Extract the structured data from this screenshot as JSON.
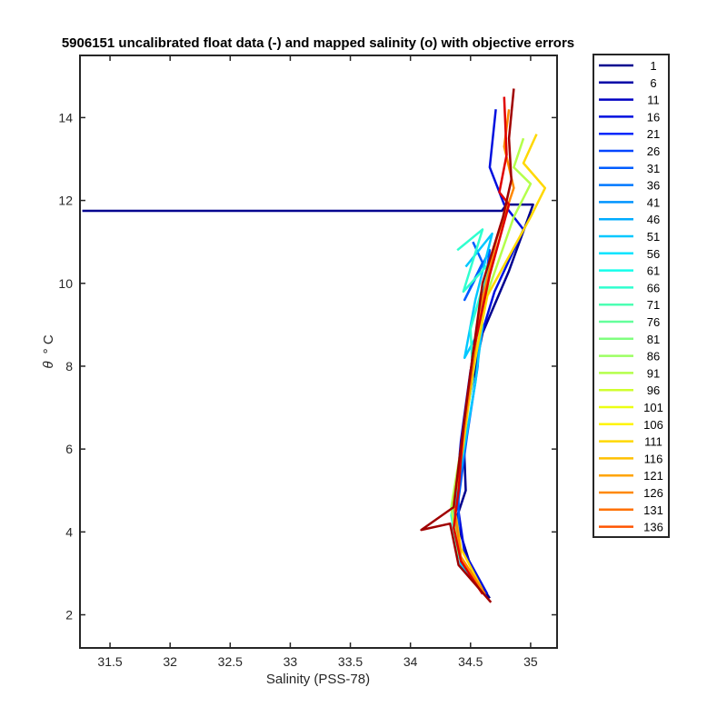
{
  "chart_data": {
    "type": "line",
    "title": "5906151 uncalibrated float data (-) and mapped salinity (o) with objective errors",
    "xlabel": "Salinity (PSS-78)",
    "ylabel_symbol": "θ",
    "ylabel_unit": "° C",
    "xlim": [
      31.25,
      35.22
    ],
    "ylim": [
      1.2,
      15.5
    ],
    "xticks": [
      "31.5",
      "32",
      "32.5",
      "33",
      "33.5",
      "34",
      "34.5",
      "35"
    ],
    "yticks": [
      "2",
      "4",
      "6",
      "8",
      "10",
      "12",
      "14"
    ],
    "grid": false,
    "legend_position": "outside-right",
    "legend": [
      {
        "label": "1",
        "color": "#00008F"
      },
      {
        "label": "6",
        "color": "#0000A7"
      },
      {
        "label": "11",
        "color": "#0000C3"
      },
      {
        "label": "16",
        "color": "#0010DF"
      },
      {
        "label": "21",
        "color": "#0028FB"
      },
      {
        "label": "26",
        "color": "#0044FF"
      },
      {
        "label": "31",
        "color": "#005CFF"
      },
      {
        "label": "36",
        "color": "#0078FF"
      },
      {
        "label": "41",
        "color": "#0094FF"
      },
      {
        "label": "46",
        "color": "#00ACFF"
      },
      {
        "label": "51",
        "color": "#00C8FF"
      },
      {
        "label": "56",
        "color": "#00E4FF"
      },
      {
        "label": "61",
        "color": "#14FFEB"
      },
      {
        "label": "66",
        "color": "#30FFCF"
      },
      {
        "label": "71",
        "color": "#4CFFB3"
      },
      {
        "label": "76",
        "color": "#64FF9B"
      },
      {
        "label": "81",
        "color": "#80FF7F"
      },
      {
        "label": "86",
        "color": "#9CFF63"
      },
      {
        "label": "91",
        "color": "#B4FF4B"
      },
      {
        "label": "96",
        "color": "#D0FF2F"
      },
      {
        "label": "101",
        "color": "#ECFF13"
      },
      {
        "label": "106",
        "color": "#FFF400"
      },
      {
        "label": "111",
        "color": "#FFD800"
      },
      {
        "label": "116",
        "color": "#FFC000"
      },
      {
        "label": "121",
        "color": "#FFA400"
      },
      {
        "label": "126",
        "color": "#FF8800"
      },
      {
        "label": "131",
        "color": "#FF7000"
      },
      {
        "label": "136",
        "color": "#FF5400"
      }
    ],
    "series": [
      {
        "color": "#00008F",
        "x": [
          31.27,
          34.76,
          34.8,
          35.02,
          34.82,
          34.6,
          34.44,
          34.46,
          34.38,
          34.52,
          34.66
        ],
        "y": [
          11.75,
          11.75,
          11.9,
          11.9,
          10.3,
          8.8,
          6.5,
          5.0,
          4.3,
          3.0,
          2.4
        ]
      },
      {
        "color": "#0010DF",
        "x": [
          34.71,
          34.66,
          34.78,
          34.94,
          34.7,
          34.5,
          34.42,
          34.38,
          34.45,
          34.64
        ],
        "y": [
          14.2,
          12.8,
          11.9,
          11.3,
          9.8,
          7.9,
          6.2,
          4.9,
          3.5,
          2.5
        ]
      },
      {
        "color": "#005CFF",
        "x": [
          34.52,
          34.6,
          34.45,
          34.66,
          34.58,
          34.56,
          34.47,
          34.4,
          34.4,
          34.62
        ],
        "y": [
          11.0,
          10.5,
          9.6,
          10.8,
          9.2,
          8.0,
          6.3,
          4.8,
          3.4,
          2.5
        ]
      },
      {
        "color": "#00C8FF",
        "x": [
          34.46,
          34.68,
          34.54,
          34.45,
          34.6,
          34.54,
          34.44,
          34.36,
          34.42,
          34.58
        ],
        "y": [
          10.4,
          11.2,
          9.6,
          8.2,
          9.0,
          7.6,
          5.9,
          4.5,
          3.2,
          2.6
        ]
      },
      {
        "color": "#30FFCF",
        "x": [
          34.39,
          34.6,
          34.44,
          34.66,
          34.5,
          34.52,
          34.41,
          34.34,
          34.4,
          34.56
        ],
        "y": [
          10.8,
          11.3,
          9.8,
          10.5,
          8.9,
          7.7,
          5.8,
          4.4,
          3.4,
          2.7
        ]
      },
      {
        "color": "#B4FF4B",
        "x": [
          34.94,
          34.86,
          35.0,
          34.86,
          34.62,
          34.52,
          34.42,
          34.34,
          34.4,
          34.58
        ],
        "y": [
          13.5,
          12.8,
          12.4,
          11.6,
          9.6,
          7.8,
          6.0,
          4.6,
          3.5,
          2.6
        ]
      },
      {
        "color": "#FFD800",
        "x": [
          35.05,
          34.94,
          35.12,
          35.0,
          34.64,
          34.52,
          34.44,
          34.36,
          34.42,
          34.6
        ],
        "y": [
          13.6,
          12.9,
          12.3,
          11.6,
          9.7,
          7.9,
          6.1,
          4.7,
          3.6,
          2.6
        ]
      },
      {
        "color": "#FF8800",
        "x": [
          34.82,
          34.78,
          34.86,
          34.72,
          34.58,
          34.5,
          34.42,
          34.36,
          34.42,
          34.62
        ],
        "y": [
          14.2,
          13.3,
          12.3,
          11.1,
          9.4,
          7.6,
          5.9,
          4.7,
          3.4,
          2.5
        ]
      },
      {
        "color": "#E00000",
        "x": [
          34.78,
          34.8,
          34.74,
          34.82,
          34.66,
          34.52,
          34.44,
          34.4,
          34.36,
          34.42,
          34.6
        ],
        "y": [
          14.5,
          13.1,
          12.2,
          11.9,
          10.2,
          8.3,
          6.5,
          5.0,
          4.1,
          3.3,
          2.5
        ]
      },
      {
        "color": "#A00000",
        "x": [
          34.86,
          34.82,
          34.84,
          34.77,
          34.6,
          34.52,
          34.47,
          34.4,
          34.36,
          34.09,
          34.33,
          34.4,
          34.67
        ],
        "y": [
          14.7,
          13.5,
          12.5,
          11.6,
          10.0,
          8.3,
          7.2,
          5.6,
          4.6,
          4.05,
          4.2,
          3.2,
          2.3
        ]
      }
    ]
  }
}
